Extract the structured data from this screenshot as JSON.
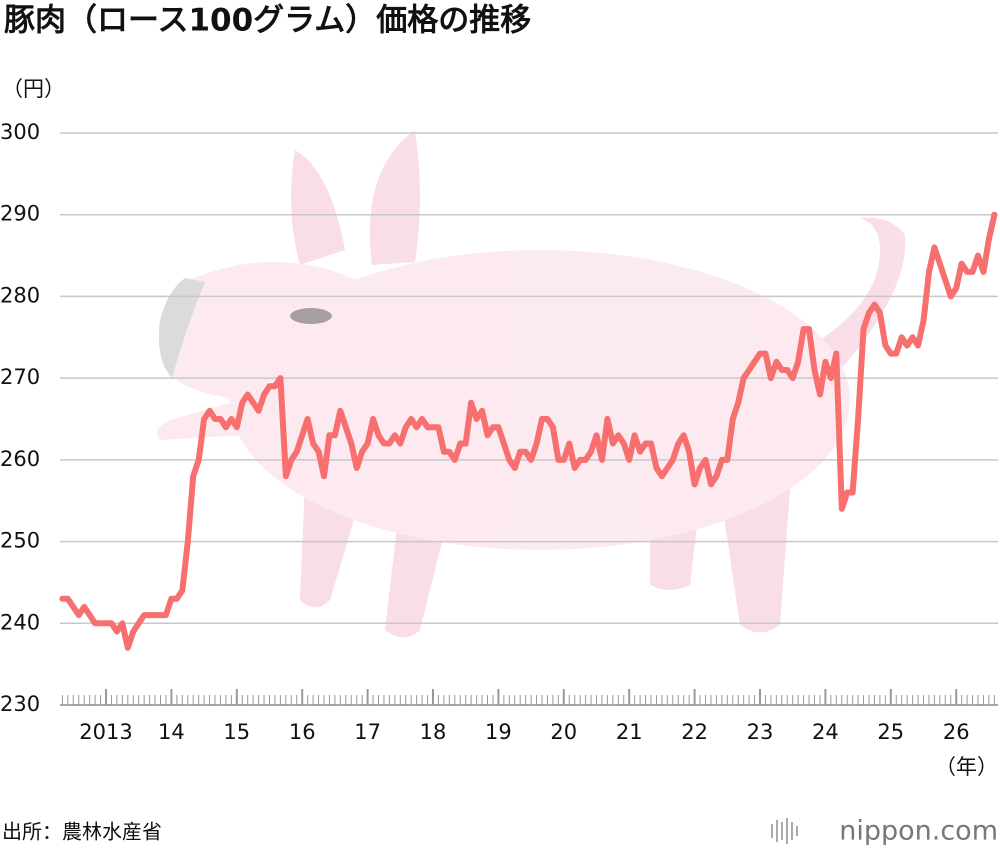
{
  "chart_data": {
    "type": "line",
    "title": "豚肉（ロース100グラム）価格の推移",
    "y_label": "（円）",
    "x_label": "（年）",
    "source": "出所：農林水産省",
    "color": "#f76f6f",
    "grid": true,
    "ylim": [
      230,
      300
    ],
    "yticks": [
      230,
      240,
      250,
      260,
      270,
      280,
      290,
      300
    ],
    "categories": [
      null,
      null,
      null,
      null,
      null,
      null,
      null,
      null,
      "2013",
      null,
      null,
      null,
      null,
      null,
      null,
      null,
      null,
      null,
      null,
      null,
      "14",
      null,
      null,
      null,
      null,
      null,
      null,
      null,
      null,
      null,
      null,
      null,
      "15",
      null,
      null,
      null,
      null,
      null,
      null,
      null,
      null,
      null,
      null,
      null,
      "16",
      null,
      null,
      null,
      null,
      null,
      null,
      null,
      null,
      null,
      null,
      null,
      "17",
      null,
      null,
      null,
      null,
      null,
      null,
      null,
      null,
      null,
      null,
      null,
      "18",
      null,
      null,
      null,
      null,
      null,
      null,
      null,
      null,
      null,
      null,
      null,
      "19",
      null,
      null,
      null,
      null,
      null,
      null,
      null,
      null,
      null,
      null,
      null,
      "20",
      null,
      null,
      null,
      null,
      null,
      null,
      null,
      null,
      null,
      null,
      null,
      "21",
      null,
      null,
      null,
      null,
      null,
      null,
      null,
      null,
      null,
      null,
      null,
      "22",
      null,
      null,
      null,
      null,
      null,
      null,
      null,
      null,
      null,
      null,
      null,
      "23",
      null,
      null,
      null,
      null,
      null,
      null,
      null,
      null,
      null,
      null,
      null,
      "24",
      null,
      null,
      null,
      null,
      null,
      null,
      null,
      null,
      null,
      null,
      null,
      "25",
      null,
      null,
      null,
      null,
      null,
      null,
      null,
      null,
      null,
      null,
      null,
      "26",
      null,
      null,
      null,
      null,
      null,
      null,
      null
    ],
    "values": [
      243,
      243,
      242,
      241,
      242,
      241,
      240,
      240,
      240,
      240,
      239,
      240,
      237,
      239,
      240,
      241,
      241,
      241,
      241,
      241,
      243,
      243,
      244,
      250,
      258,
      260,
      265,
      266,
      265,
      265,
      264,
      265,
      264,
      267,
      268,
      267,
      266,
      268,
      269,
      269,
      270,
      258,
      260,
      261,
      263,
      265,
      262,
      261,
      258,
      263,
      263,
      266,
      264,
      262,
      259,
      261,
      262,
      265,
      263,
      262,
      262,
      263,
      262,
      264,
      265,
      264,
      265,
      264,
      264,
      264,
      261,
      261,
      260,
      262,
      262,
      267,
      265,
      266,
      263,
      264,
      264,
      262,
      260,
      259,
      261,
      261,
      260,
      262,
      265,
      265,
      264,
      260,
      260,
      262,
      259,
      260,
      260,
      261,
      263,
      260,
      265,
      262,
      263,
      262,
      260,
      263,
      261,
      262,
      262,
      259,
      258,
      259,
      260,
      262,
      263,
      261,
      257,
      259,
      260,
      257,
      258,
      260,
      260,
      265,
      267,
      270,
      271,
      272,
      273,
      273,
      270,
      272,
      271,
      271,
      270,
      272,
      276,
      276,
      271,
      268,
      272,
      270,
      273,
      254,
      256,
      256,
      265,
      276,
      278,
      279,
      278,
      274,
      273,
      273,
      275,
      274,
      275,
      274,
      277,
      283,
      286,
      284,
      282,
      280,
      281,
      284,
      283,
      283,
      285,
      283,
      287,
      290
    ]
  },
  "logo": "nippon.com"
}
